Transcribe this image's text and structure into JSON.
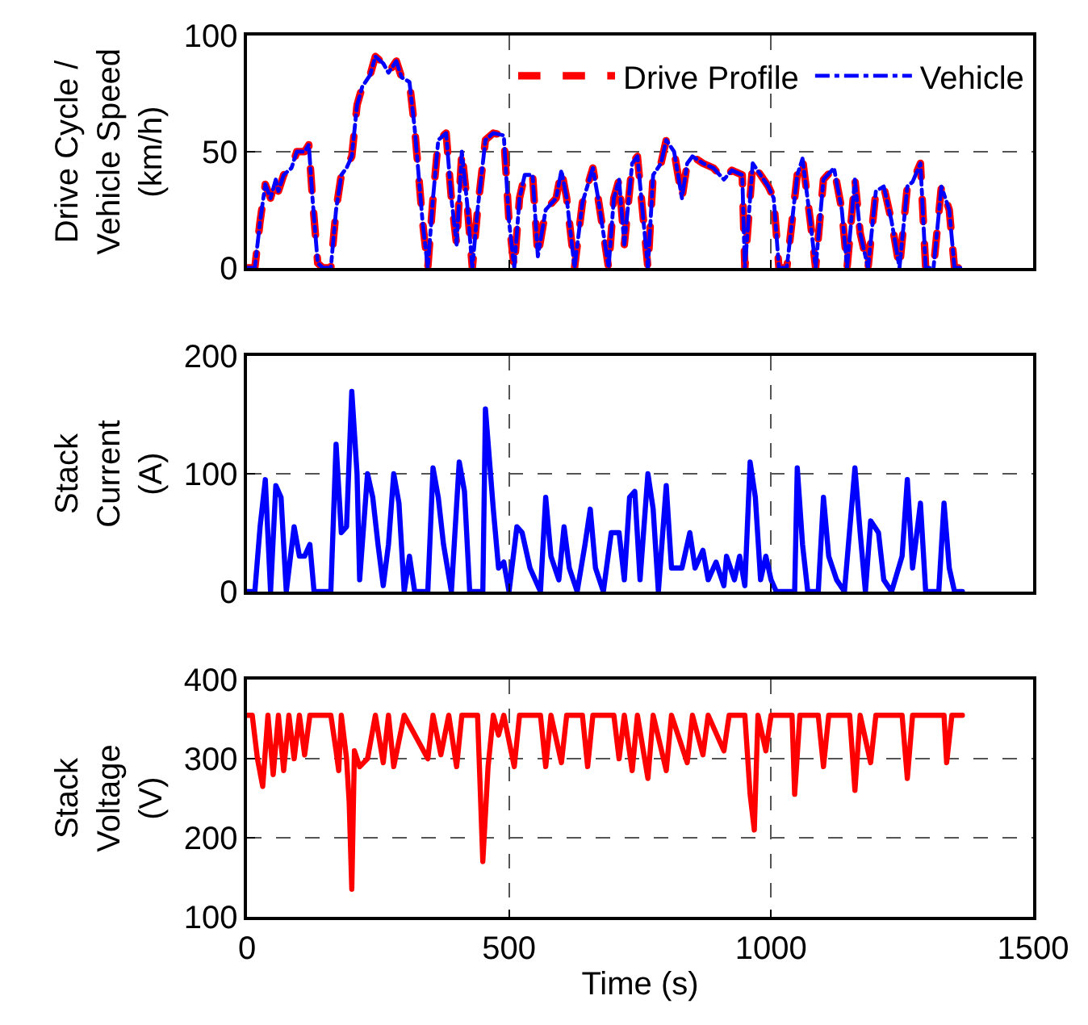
{
  "chart_data": [
    {
      "type": "line",
      "ylabel": "Drive Cycle /\nVehicle Speed\n(km/h)",
      "xlim": [
        0,
        1500
      ],
      "xticks": [
        0,
        500,
        1000,
        1500
      ],
      "ylim": [
        0,
        100
      ],
      "yticks": [
        0,
        50,
        100
      ],
      "grid": true,
      "legend": "top right",
      "tick_labels": "y",
      "x": [
        0,
        15,
        25,
        35,
        45,
        55,
        60,
        70,
        85,
        95,
        110,
        118,
        125,
        135,
        145,
        160,
        170,
        180,
        190,
        200,
        210,
        220,
        235,
        245,
        260,
        270,
        285,
        295,
        310,
        320,
        335,
        345,
        355,
        365,
        380,
        390,
        400,
        410,
        420,
        430,
        440,
        455,
        470,
        490,
        500,
        510,
        520,
        530,
        545,
        555,
        570,
        590,
        600,
        610,
        625,
        640,
        660,
        670,
        690,
        700,
        710,
        720,
        735,
        745,
        765,
        775,
        790,
        800,
        815,
        830,
        840,
        850,
        870,
        890,
        910,
        925,
        945,
        950,
        965,
        980,
        995,
        1005,
        1015,
        1030,
        1050,
        1060,
        1075,
        1085,
        1100,
        1120,
        1135,
        1145,
        1160,
        1170,
        1185,
        1200,
        1215,
        1230,
        1245,
        1260,
        1270,
        1285,
        1295,
        1310,
        1325,
        1340,
        1350,
        1365
      ],
      "series": [
        {
          "name": "Drive Profile",
          "color": "#ff0000",
          "line_style": "dashed",
          "values": [
            0,
            0,
            20,
            36,
            30,
            38,
            33,
            40,
            43,
            50,
            50,
            53,
            30,
            2,
            0,
            0,
            25,
            40,
            43,
            48,
            70,
            78,
            83,
            91,
            88,
            84,
            89,
            82,
            80,
            60,
            20,
            0,
            30,
            55,
            58,
            30,
            10,
            50,
            28,
            0,
            25,
            55,
            58,
            57,
            20,
            0,
            30,
            40,
            40,
            5,
            25,
            30,
            42,
            30,
            0,
            28,
            43,
            30,
            0,
            30,
            38,
            10,
            45,
            48,
            0,
            40,
            45,
            55,
            50,
            30,
            45,
            48,
            45,
            43,
            38,
            42,
            40,
            0,
            45,
            40,
            35,
            30,
            0,
            0,
            40,
            47,
            20,
            0,
            38,
            43,
            25,
            0,
            38,
            15,
            0,
            33,
            35,
            20,
            0,
            35,
            37,
            45,
            0,
            0,
            35,
            25,
            0,
            0
          ]
        },
        {
          "name": "Vehicle",
          "color": "#0000ff",
          "line_style": "dashdot",
          "values": [
            0,
            0,
            20,
            36,
            30,
            38,
            33,
            40,
            43,
            50,
            50,
            53,
            30,
            2,
            0,
            0,
            25,
            40,
            43,
            48,
            70,
            78,
            83,
            91,
            88,
            84,
            89,
            82,
            80,
            60,
            20,
            0,
            30,
            55,
            58,
            30,
            10,
            50,
            28,
            0,
            25,
            55,
            58,
            57,
            20,
            0,
            30,
            40,
            40,
            5,
            25,
            30,
            42,
            30,
            0,
            28,
            43,
            30,
            0,
            30,
            38,
            10,
            45,
            48,
            0,
            40,
            45,
            55,
            50,
            30,
            45,
            48,
            45,
            43,
            38,
            42,
            40,
            0,
            45,
            40,
            35,
            30,
            0,
            0,
            40,
            47,
            20,
            0,
            38,
            43,
            25,
            0,
            38,
            15,
            0,
            33,
            35,
            20,
            0,
            35,
            37,
            45,
            0,
            0,
            35,
            25,
            0,
            0
          ]
        }
      ]
    },
    {
      "type": "line",
      "ylabel": "Stack\nCurrent\n(A)",
      "xlim": [
        0,
        1500
      ],
      "xticks": [
        0,
        500,
        1000,
        1500
      ],
      "ylim": [
        0,
        200
      ],
      "yticks": [
        0,
        100,
        200
      ],
      "grid": true,
      "tick_labels": "y",
      "x": [
        0,
        15,
        25,
        35,
        45,
        55,
        65,
        75,
        90,
        100,
        110,
        120,
        128,
        160,
        170,
        180,
        190,
        200,
        210,
        215,
        230,
        240,
        250,
        260,
        270,
        280,
        290,
        300,
        310,
        320,
        345,
        355,
        365,
        375,
        390,
        405,
        415,
        425,
        450,
        455,
        470,
        480,
        490,
        500,
        515,
        525,
        540,
        560,
        570,
        580,
        595,
        605,
        615,
        630,
        645,
        655,
        665,
        680,
        695,
        710,
        720,
        730,
        740,
        750,
        765,
        775,
        785,
        800,
        810,
        830,
        845,
        855,
        870,
        880,
        895,
        910,
        915,
        930,
        940,
        950,
        960,
        970,
        980,
        990,
        1000,
        1010,
        1045,
        1050,
        1060,
        1070,
        1090,
        1100,
        1110,
        1125,
        1140,
        1160,
        1170,
        1180,
        1190,
        1205,
        1215,
        1230,
        1250,
        1260,
        1270,
        1285,
        1295,
        1320,
        1330,
        1340,
        1350,
        1365
      ],
      "series": [
        {
          "color": "#0000ff",
          "values": [
            0,
            0,
            55,
            95,
            0,
            90,
            80,
            0,
            55,
            30,
            30,
            40,
            0,
            0,
            125,
            50,
            55,
            170,
            100,
            10,
            100,
            80,
            40,
            5,
            40,
            100,
            75,
            0,
            30,
            0,
            0,
            105,
            80,
            40,
            0,
            110,
            85,
            0,
            0,
            155,
            70,
            20,
            25,
            0,
            55,
            50,
            20,
            0,
            80,
            30,
            10,
            55,
            20,
            0,
            40,
            70,
            20,
            0,
            50,
            50,
            10,
            80,
            85,
            10,
            100,
            70,
            0,
            90,
            20,
            20,
            50,
            20,
            35,
            10,
            25,
            5,
            30,
            10,
            30,
            5,
            110,
            80,
            10,
            30,
            10,
            0,
            0,
            105,
            40,
            0,
            0,
            80,
            30,
            10,
            0,
            105,
            50,
            0,
            60,
            50,
            10,
            0,
            30,
            95,
            20,
            75,
            0,
            0,
            75,
            20,
            0,
            0
          ]
        }
      ]
    },
    {
      "type": "line",
      "ylabel": "Stack\nVoltage\n(V)",
      "xlabel": "Time (s)",
      "xlim": [
        0,
        1500
      ],
      "xticks": [
        0,
        500,
        1000,
        1500
      ],
      "ylim": [
        100,
        400
      ],
      "yticks": [
        100,
        200,
        300,
        400
      ],
      "grid": true,
      "x": [
        0,
        10,
        20,
        30,
        40,
        50,
        60,
        70,
        80,
        90,
        100,
        110,
        120,
        160,
        170,
        175,
        180,
        190,
        195,
        200,
        205,
        215,
        230,
        245,
        260,
        270,
        280,
        300,
        345,
        355,
        370,
        385,
        400,
        410,
        440,
        450,
        460,
        470,
        480,
        490,
        510,
        520,
        560,
        570,
        580,
        600,
        610,
        640,
        650,
        660,
        700,
        710,
        720,
        735,
        745,
        765,
        775,
        800,
        810,
        840,
        850,
        870,
        880,
        910,
        920,
        950,
        960,
        968,
        975,
        990,
        1000,
        1040,
        1045,
        1055,
        1090,
        1100,
        1110,
        1150,
        1160,
        1170,
        1190,
        1200,
        1250,
        1260,
        1270,
        1330,
        1335,
        1345,
        1365
      ],
      "series": [
        {
          "color": "#ff0000",
          "values": [
            355,
            355,
            300,
            265,
            355,
            280,
            355,
            285,
            355,
            300,
            355,
            305,
            355,
            355,
            310,
            285,
            355,
            300,
            245,
            135,
            310,
            290,
            300,
            355,
            295,
            355,
            290,
            355,
            300,
            355,
            305,
            355,
            290,
            355,
            355,
            170,
            290,
            355,
            330,
            355,
            290,
            355,
            355,
            290,
            355,
            295,
            355,
            355,
            290,
            355,
            355,
            300,
            355,
            285,
            355,
            275,
            355,
            285,
            355,
            295,
            355,
            305,
            355,
            310,
            355,
            355,
            255,
            210,
            355,
            310,
            355,
            355,
            255,
            355,
            355,
            290,
            355,
            355,
            260,
            355,
            295,
            355,
            355,
            275,
            355,
            355,
            295,
            355,
            355
          ]
        }
      ]
    }
  ]
}
